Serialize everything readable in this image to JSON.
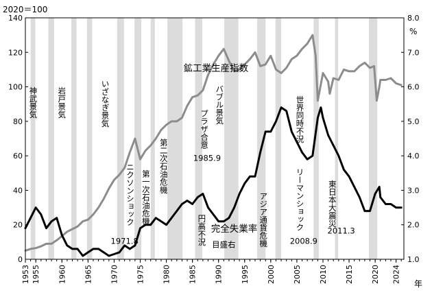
{
  "chart_data": {
    "type": "line",
    "y_left_unit": "2020＝100",
    "y_right_unit": "%",
    "x_unit": "年",
    "xlim": [
      1953,
      2025.5
    ],
    "ylim_left": [
      0,
      140
    ],
    "ylim_right": [
      1.0,
      8.0
    ],
    "left_ticks": [
      "0",
      "20",
      "40",
      "60",
      "80",
      "100",
      "120",
      "140"
    ],
    "right_ticks": [
      "1.0",
      "2.0",
      "3.0",
      "4.0",
      "5.0",
      "6.0",
      "7.0",
      "8.0"
    ],
    "x_ticks": [
      "1953",
      "1955",
      "1960",
      "1965",
      "1970",
      "1975",
      "1980",
      "1985",
      "1990",
      "1995",
      "2000",
      "2005",
      "2010",
      "2015",
      "2020",
      "2024"
    ],
    "x_tick_values": [
      1953,
      1955,
      1960,
      1965,
      1970,
      1975,
      1980,
      1985,
      1990,
      1995,
      2000,
      2005,
      2010,
      2015,
      2020,
      2024
    ],
    "grid": false,
    "shaded_periods": [
      [
        1954.0,
        1954.9
      ],
      [
        1957.4,
        1958.5
      ],
      [
        1961.8,
        1962.8
      ],
      [
        1964.8,
        1965.8
      ],
      [
        1970.6,
        1971.9
      ],
      [
        1973.9,
        1975.2
      ],
      [
        1977.0,
        1977.8
      ],
      [
        1980.2,
        1983.1
      ],
      [
        1985.5,
        1986.9
      ],
      [
        1991.1,
        1993.8
      ],
      [
        1997.4,
        1999.0
      ],
      [
        2000.9,
        2002.0
      ],
      [
        2008.2,
        2009.2
      ],
      [
        2012.3,
        2012.9
      ],
      [
        2018.8,
        2020.4
      ]
    ],
    "series": [
      {
        "name": "鉱工業生産指数",
        "axis": "left",
        "color": "#8c8c8c",
        "points": [
          [
            1953,
            5
          ],
          [
            1954,
            6
          ],
          [
            1955,
            6.5
          ],
          [
            1956,
            7.5
          ],
          [
            1957,
            9
          ],
          [
            1958,
            9
          ],
          [
            1959,
            11
          ],
          [
            1960,
            13.5
          ],
          [
            1961,
            16
          ],
          [
            1962,
            17.5
          ],
          [
            1963,
            19
          ],
          [
            1964,
            22
          ],
          [
            1965,
            23
          ],
          [
            1966,
            26
          ],
          [
            1967,
            30
          ],
          [
            1968,
            35
          ],
          [
            1969,
            41
          ],
          [
            1970,
            46
          ],
          [
            1971,
            49
          ],
          [
            1972,
            53
          ],
          [
            1973,
            62
          ],
          [
            1974,
            70
          ],
          [
            1975,
            58
          ],
          [
            1976,
            63
          ],
          [
            1977,
            66
          ],
          [
            1978,
            70
          ],
          [
            1979,
            75
          ],
          [
            1980,
            78
          ],
          [
            1981,
            80
          ],
          [
            1982,
            80
          ],
          [
            1983,
            82
          ],
          [
            1984,
            89
          ],
          [
            1985,
            94
          ],
          [
            1986,
            95
          ],
          [
            1987,
            98
          ],
          [
            1988,
            107
          ],
          [
            1989,
            113
          ],
          [
            1990,
            118
          ],
          [
            1991,
            122
          ],
          [
            1992,
            115
          ],
          [
            1993,
            109
          ],
          [
            1994,
            110
          ],
          [
            1995,
            113
          ],
          [
            1996,
            116
          ],
          [
            1997,
            120
          ],
          [
            1998,
            112
          ],
          [
            1999,
            113
          ],
          [
            2000,
            118
          ],
          [
            2001,
            110
          ],
          [
            2002,
            108
          ],
          [
            2003,
            111
          ],
          [
            2004,
            116
          ],
          [
            2005,
            118
          ],
          [
            2006,
            122
          ],
          [
            2007,
            125
          ],
          [
            2008,
            130
          ],
          [
            2008.6,
            118
          ],
          [
            2009,
            92
          ],
          [
            2009.5,
            100
          ],
          [
            2010,
            108
          ],
          [
            2011,
            103
          ],
          [
            2011.3,
            96
          ],
          [
            2012,
            105
          ],
          [
            2013,
            104
          ],
          [
            2014,
            110
          ],
          [
            2015,
            109
          ],
          [
            2016,
            109
          ],
          [
            2017,
            112
          ],
          [
            2018,
            114
          ],
          [
            2019,
            111
          ],
          [
            2019.8,
            112
          ],
          [
            2020.3,
            92
          ],
          [
            2020.8,
            100
          ],
          [
            2021,
            104
          ],
          [
            2022,
            104
          ],
          [
            2023,
            105
          ],
          [
            2024,
            102
          ],
          [
            2025,
            101
          ]
        ]
      },
      {
        "name": "完全失業率",
        "axis": "right",
        "color": "#000000",
        "points": [
          [
            1953,
            1.9
          ],
          [
            1954,
            2.2
          ],
          [
            1955,
            2.5
          ],
          [
            1956,
            2.3
          ],
          [
            1957,
            1.9
          ],
          [
            1958,
            2.1
          ],
          [
            1959,
            2.2
          ],
          [
            1960,
            1.7
          ],
          [
            1961,
            1.4
          ],
          [
            1962,
            1.3
          ],
          [
            1963,
            1.3
          ],
          [
            1964,
            1.1
          ],
          [
            1965,
            1.2
          ],
          [
            1966,
            1.3
          ],
          [
            1967,
            1.3
          ],
          [
            1968,
            1.2
          ],
          [
            1969,
            1.1
          ],
          [
            1970,
            1.15
          ],
          [
            1971,
            1.2
          ],
          [
            1972,
            1.4
          ],
          [
            1973,
            1.3
          ],
          [
            1974,
            1.4
          ],
          [
            1975,
            1.9
          ],
          [
            1976,
            2.0
          ],
          [
            1977,
            2.0
          ],
          [
            1978,
            2.2
          ],
          [
            1979,
            2.1
          ],
          [
            1980,
            2.0
          ],
          [
            1981,
            2.2
          ],
          [
            1982,
            2.4
          ],
          [
            1983,
            2.6
          ],
          [
            1984,
            2.7
          ],
          [
            1985,
            2.6
          ],
          [
            1986,
            2.8
          ],
          [
            1987,
            2.9
          ],
          [
            1988,
            2.5
          ],
          [
            1989,
            2.3
          ],
          [
            1990,
            2.1
          ],
          [
            1991,
            2.1
          ],
          [
            1992,
            2.2
          ],
          [
            1993,
            2.5
          ],
          [
            1994,
            2.9
          ],
          [
            1995,
            3.2
          ],
          [
            1996,
            3.4
          ],
          [
            1997,
            3.4
          ],
          [
            1998,
            4.1
          ],
          [
            1999,
            4.7
          ],
          [
            2000,
            4.7
          ],
          [
            2001,
            5.0
          ],
          [
            2002,
            5.4
          ],
          [
            2003,
            5.3
          ],
          [
            2004,
            4.7
          ],
          [
            2005,
            4.4
          ],
          [
            2006,
            4.1
          ],
          [
            2007,
            3.9
          ],
          [
            2008,
            4.0
          ],
          [
            2009,
            5.1
          ],
          [
            2009.6,
            5.4
          ],
          [
            2010,
            5.1
          ],
          [
            2011,
            4.6
          ],
          [
            2012,
            4.3
          ],
          [
            2013,
            4.0
          ],
          [
            2014,
            3.6
          ],
          [
            2015,
            3.4
          ],
          [
            2016,
            3.1
          ],
          [
            2017,
            2.8
          ],
          [
            2018,
            2.4
          ],
          [
            2019,
            2.4
          ],
          [
            2020,
            2.9
          ],
          [
            2020.8,
            3.1
          ],
          [
            2021,
            2.8
          ],
          [
            2022,
            2.6
          ],
          [
            2023,
            2.6
          ],
          [
            2024,
            2.5
          ],
          [
            2025,
            2.5
          ]
        ]
      }
    ],
    "annotations": [
      {
        "text": "神武景気",
        "x": 1954.5,
        "left_value": 100,
        "orientation": "vertical"
      },
      {
        "text": "岩戸景気",
        "x": 1960.0,
        "left_value": 100,
        "orientation": "vertical"
      },
      {
        "text": "いざなぎ景気",
        "x": 1968.3,
        "left_value": 104,
        "orientation": "vertical"
      },
      {
        "text": "ニクソンショック",
        "x": 1973.1,
        "left_value": 56,
        "orientation": "vertical"
      },
      {
        "text": "1971.8",
        "x": 1972.0,
        "left_value": 9,
        "orientation": "horizontal"
      },
      {
        "text": "第一次石油危機",
        "x": 1976.1,
        "left_value": 52,
        "orientation": "vertical"
      },
      {
        "text": "第二次石油危機",
        "x": 1979.5,
        "left_value": 70,
        "orientation": "vertical"
      },
      {
        "text": "プラザ合意",
        "x": 1987.3,
        "left_value": 87,
        "orientation": "vertical"
      },
      {
        "text": "1985.9",
        "x": 1987.8,
        "left_value": 57,
        "orientation": "horizontal"
      },
      {
        "text": "バブル景気",
        "x": 1990.2,
        "left_value": 101,
        "orientation": "vertical"
      },
      {
        "text": "円高不況",
        "x": 1986.8,
        "left_value": 26,
        "orientation": "vertical"
      },
      {
        "text": "鉱工業生産指数",
        "x": 1989.5,
        "left_value": 109,
        "orientation": "horizontal",
        "size": "large"
      },
      {
        "text": "完全失業率",
        "x": 1993.0,
        "left_value": 16,
        "orientation": "horizontal",
        "size": "large"
      },
      {
        "text": "目盛右",
        "x": 1991.0,
        "left_value": 7,
        "orientation": "horizontal"
      },
      {
        "text": "アジア通貨危機",
        "x": 1998.6,
        "left_value": 39,
        "orientation": "vertical"
      },
      {
        "text": "世界同時不況",
        "x": 2005.6,
        "left_value": 95,
        "orientation": "vertical"
      },
      {
        "text": "リーマンショック",
        "x": 2005.6,
        "left_value": 53,
        "orientation": "vertical"
      },
      {
        "text": "2008.9",
        "x": 2006.3,
        "left_value": 9,
        "orientation": "horizontal"
      },
      {
        "text": "東日本大震災",
        "x": 2011.8,
        "left_value": 46,
        "orientation": "vertical"
      },
      {
        "text": "2011.3",
        "x": 2013.5,
        "left_value": 15,
        "orientation": "horizontal"
      }
    ]
  }
}
